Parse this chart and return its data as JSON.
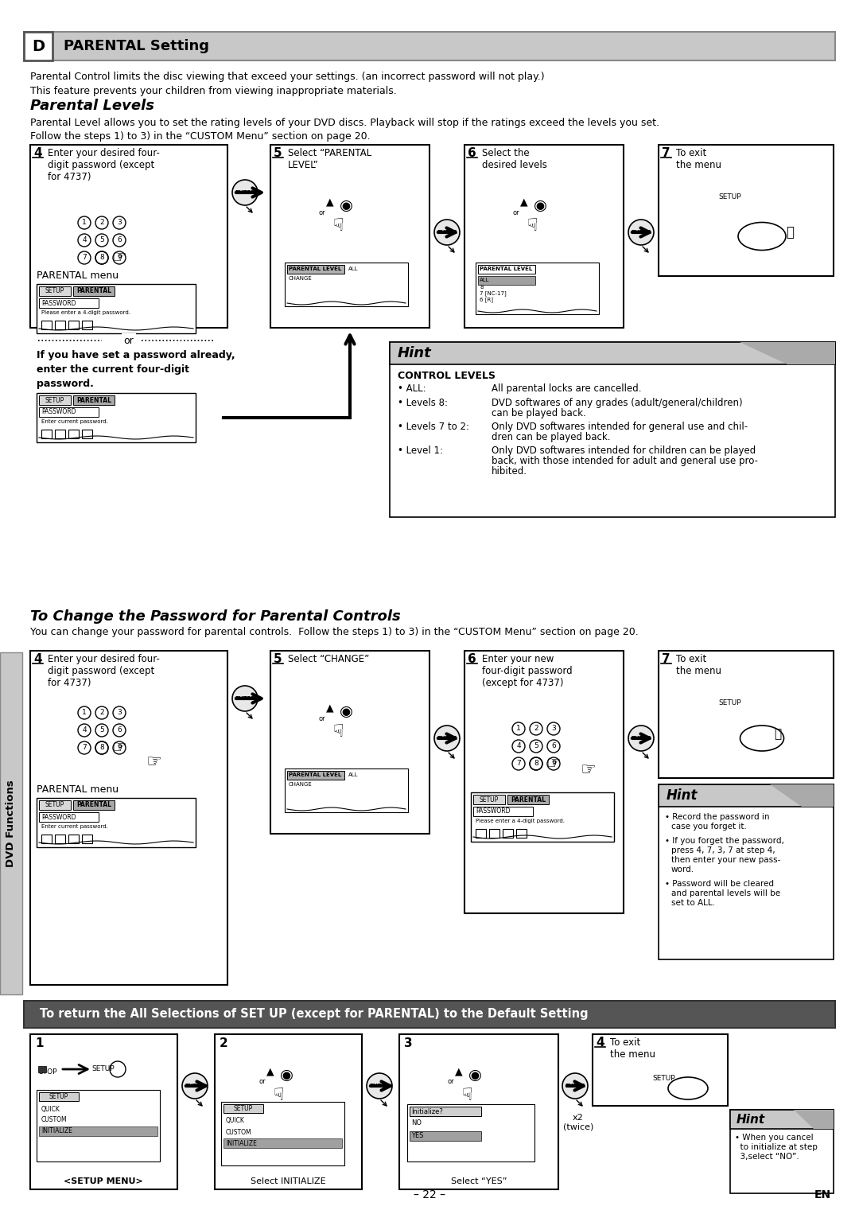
{
  "bg_color": "#ffffff",
  "title_header": "PARENTAL Setting",
  "title_header_letter": "D",
  "header_bg": "#c8c8c8",
  "section1_title": "Parental Levels",
  "section1_intro1": "Parental Control limits the disc viewing that exceed your settings. (an incorrect password will not play.)",
  "section1_intro2": "This feature prevents your children from viewing inappropriate materials.",
  "section1_body1": "Parental Level allows you to set the rating levels of your DVD discs. Playback will stop if the ratings exceed the levels you set.",
  "section1_body2": "Follow the steps 1) to 3) in the “CUSTOM Menu” section on page 20.",
  "parental_menu_label": "PARENTAL menu",
  "hint_title": "Hint",
  "control_levels_title": "CONTROL LEVELS",
  "control_levels": [
    [
      "ALL:",
      "All parental locks are cancelled."
    ],
    [
      "Levels 8:",
      "DVD softwares of any grades (adult/general/children)\ncan be played back."
    ],
    [
      "Levels 7 to 2:",
      "Only DVD softwares intended for general use and chil-\ndren can be played back."
    ],
    [
      "Level 1:",
      "Only DVD softwares intended for children can be played\nback, with those intended for adult and general use pro-\nhibited."
    ]
  ],
  "section2_title": "To Change the Password for Parental Controls",
  "section2_body": "You can change your password for parental controls.  Follow the steps 1) to 3) in the “CUSTOM Menu” section on page 20.",
  "hint2_bullets": [
    "Record the password in\ncase you forget it.",
    "If you forget the password,\npress 4, 7, 3, 7 at step 4,\nthen enter your new pass-\nword.",
    "Password will be cleared\nand parental levels will be\nset to ALL."
  ],
  "section3_header": "To return the All Selections of SET UP (except for PARENTAL) to the Default Setting",
  "step1c_label": "<SETUP MENU>",
  "step2c_label": "Select INITIALIZE",
  "step3c_label": "Select “YES”",
  "step4c_note": "x2\n(twice)",
  "hint3_bullet": "When you cancel\nto initialize at step\n3,select “NO”.",
  "sidebar_text": "DVD Functions",
  "page_number": "– 22 –",
  "page_en": "EN",
  "sidebar_bg": "#c8c8c8",
  "hint_bg": "#c8c8c8",
  "section3_header_bg": "#555555",
  "section3_header_fg": "#ffffff"
}
